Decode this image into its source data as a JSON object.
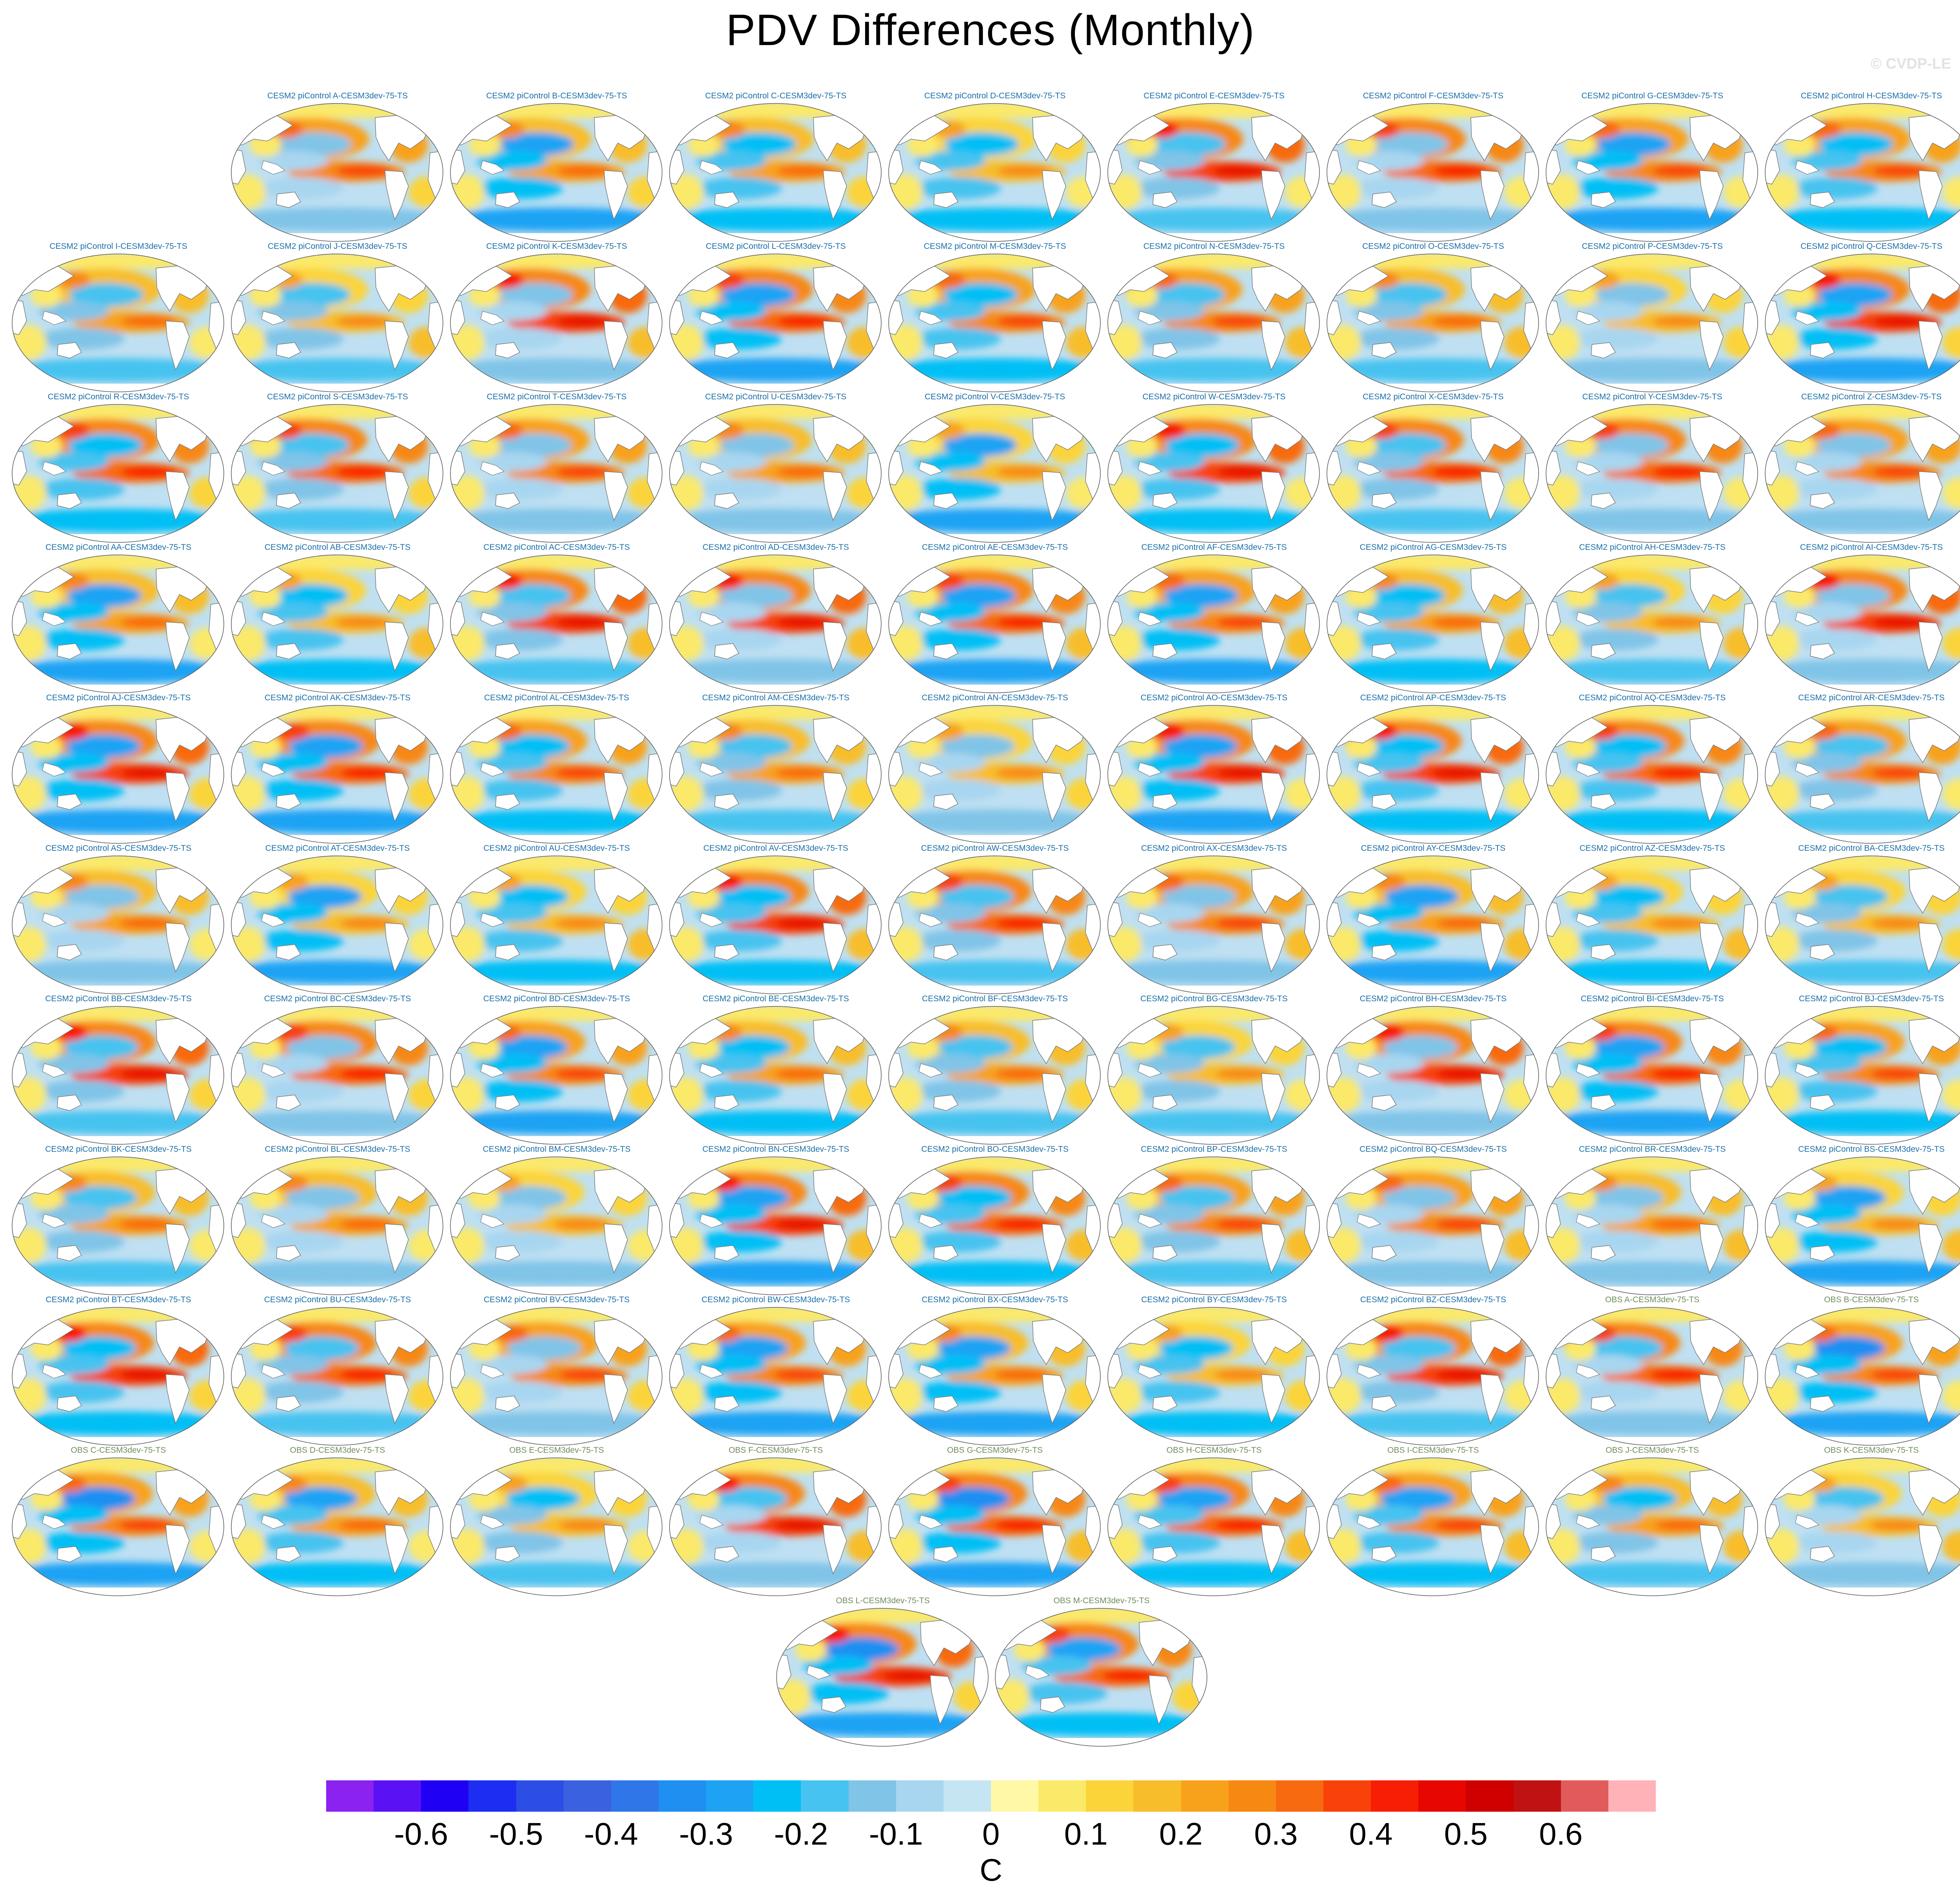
{
  "page": {
    "title": "PDV Differences (Monthly)",
    "watermark": "© CVDP-LE"
  },
  "palette": {
    "title_cesm": "#1a6fa8",
    "title_obs": "#6f8c5a",
    "ocean_base": "#bfe0f2",
    "land": "#ffffff",
    "coast": "#7a7a7a",
    "outline": "#555555"
  },
  "panels": [
    "CESM2 piControl A-CESM3dev-75-TS",
    "CESM2 piControl B-CESM3dev-75-TS",
    "CESM2 piControl C-CESM3dev-75-TS",
    "CESM2 piControl D-CESM3dev-75-TS",
    "CESM2 piControl E-CESM3dev-75-TS",
    "CESM2 piControl F-CESM3dev-75-TS",
    "CESM2 piControl G-CESM3dev-75-TS",
    "CESM2 piControl H-CESM3dev-75-TS",
    "CESM2 piControl I-CESM3dev-75-TS",
    "CESM2 piControl J-CESM3dev-75-TS",
    "CESM2 piControl K-CESM3dev-75-TS",
    "CESM2 piControl L-CESM3dev-75-TS",
    "CESM2 piControl M-CESM3dev-75-TS",
    "CESM2 piControl N-CESM3dev-75-TS",
    "CESM2 piControl O-CESM3dev-75-TS",
    "CESM2 piControl P-CESM3dev-75-TS",
    "CESM2 piControl Q-CESM3dev-75-TS",
    "CESM2 piControl R-CESM3dev-75-TS",
    "CESM2 piControl S-CESM3dev-75-TS",
    "CESM2 piControl T-CESM3dev-75-TS",
    "CESM2 piControl U-CESM3dev-75-TS",
    "CESM2 piControl V-CESM3dev-75-TS",
    "CESM2 piControl W-CESM3dev-75-TS",
    "CESM2 piControl X-CESM3dev-75-TS",
    "CESM2 piControl Y-CESM3dev-75-TS",
    "CESM2 piControl Z-CESM3dev-75-TS",
    "CESM2 piControl AA-CESM3dev-75-TS",
    "CESM2 piControl AB-CESM3dev-75-TS",
    "CESM2 piControl AC-CESM3dev-75-TS",
    "CESM2 piControl AD-CESM3dev-75-TS",
    "CESM2 piControl AE-CESM3dev-75-TS",
    "CESM2 piControl AF-CESM3dev-75-TS",
    "CESM2 piControl AG-CESM3dev-75-TS",
    "CESM2 piControl AH-CESM3dev-75-TS",
    "CESM2 piControl AI-CESM3dev-75-TS",
    "CESM2 piControl AJ-CESM3dev-75-TS",
    "CESM2 piControl AK-CESM3dev-75-TS",
    "CESM2 piControl AL-CESM3dev-75-TS",
    "CESM2 piControl AM-CESM3dev-75-TS",
    "CESM2 piControl AN-CESM3dev-75-TS",
    "CESM2 piControl AO-CESM3dev-75-TS",
    "CESM2 piControl AP-CESM3dev-75-TS",
    "CESM2 piControl AQ-CESM3dev-75-TS",
    "CESM2 piControl AR-CESM3dev-75-TS",
    "CESM2 piControl AS-CESM3dev-75-TS",
    "CESM2 piControl AT-CESM3dev-75-TS",
    "CESM2 piControl AU-CESM3dev-75-TS",
    "CESM2 piControl AV-CESM3dev-75-TS",
    "CESM2 piControl AW-CESM3dev-75-TS",
    "CESM2 piControl AX-CESM3dev-75-TS",
    "CESM2 piControl AY-CESM3dev-75-TS",
    "CESM2 piControl AZ-CESM3dev-75-TS",
    "CESM2 piControl BA-CESM3dev-75-TS",
    "CESM2 piControl BB-CESM3dev-75-TS",
    "CESM2 piControl BC-CESM3dev-75-TS",
    "CESM2 piControl BD-CESM3dev-75-TS",
    "CESM2 piControl BE-CESM3dev-75-TS",
    "CESM2 piControl BF-CESM3dev-75-TS",
    "CESM2 piControl BG-CESM3dev-75-TS",
    "CESM2 piControl BH-CESM3dev-75-TS",
    "CESM2 piControl BI-CESM3dev-75-TS",
    "CESM2 piControl BJ-CESM3dev-75-TS",
    "CESM2 piControl BK-CESM3dev-75-TS",
    "CESM2 piControl BL-CESM3dev-75-TS",
    "CESM2 piControl BM-CESM3dev-75-TS",
    "CESM2 piControl BN-CESM3dev-75-TS",
    "CESM2 piControl BO-CESM3dev-75-TS",
    "CESM2 piControl BP-CESM3dev-75-TS",
    "CESM2 piControl BQ-CESM3dev-75-TS",
    "CESM2 piControl BR-CESM3dev-75-TS",
    "CESM2 piControl BS-CESM3dev-75-TS",
    "CESM2 piControl BT-CESM3dev-75-TS",
    "CESM2 piControl BU-CESM3dev-75-TS",
    "CESM2 piControl BV-CESM3dev-75-TS",
    "CESM2 piControl BW-CESM3dev-75-TS",
    "CESM2 piControl BX-CESM3dev-75-TS",
    "CESM2 piControl BY-CESM3dev-75-TS",
    "CESM2 piControl BZ-CESM3dev-75-TS",
    "OBS A-CESM3dev-75-TS",
    "OBS B-CESM3dev-75-TS",
    "OBS C-CESM3dev-75-TS",
    "OBS D-CESM3dev-75-TS",
    "OBS E-CESM3dev-75-TS",
    "OBS F-CESM3dev-75-TS",
    "OBS G-CESM3dev-75-TS",
    "OBS H-CESM3dev-75-TS",
    "OBS I-CESM3dev-75-TS",
    "OBS J-CESM3dev-75-TS",
    "OBS K-CESM3dev-75-TS",
    "OBS L-CESM3dev-75-TS",
    "OBS M-CESM3dev-75-TS"
  ],
  "colorbar": {
    "unit": "C",
    "ticks": [
      "-0.6",
      "-0.5",
      "-0.4",
      "-0.3",
      "-0.2",
      "-0.1",
      "0",
      "0.1",
      "0.2",
      "0.3",
      "0.4",
      "0.5",
      "0.6"
    ],
    "colors": [
      "#8c22f0",
      "#5a12f5",
      "#1f00f5",
      "#1d2ef2",
      "#2d4ee6",
      "#3a62e0",
      "#2f77e8",
      "#1f8ff2",
      "#1ea3f4",
      "#00bff5",
      "#46c3f0",
      "#80c4e8",
      "#a8d6f0",
      "#c5e5f3",
      "#fff8a6",
      "#fbe96a",
      "#fbd43a",
      "#f8bd2a",
      "#f8a21c",
      "#f78812",
      "#f86a10",
      "#f8420a",
      "#f81e04",
      "#e80700",
      "#cf0000",
      "#c01212",
      "#e25b5b",
      "#ffb3b8"
    ]
  }
}
